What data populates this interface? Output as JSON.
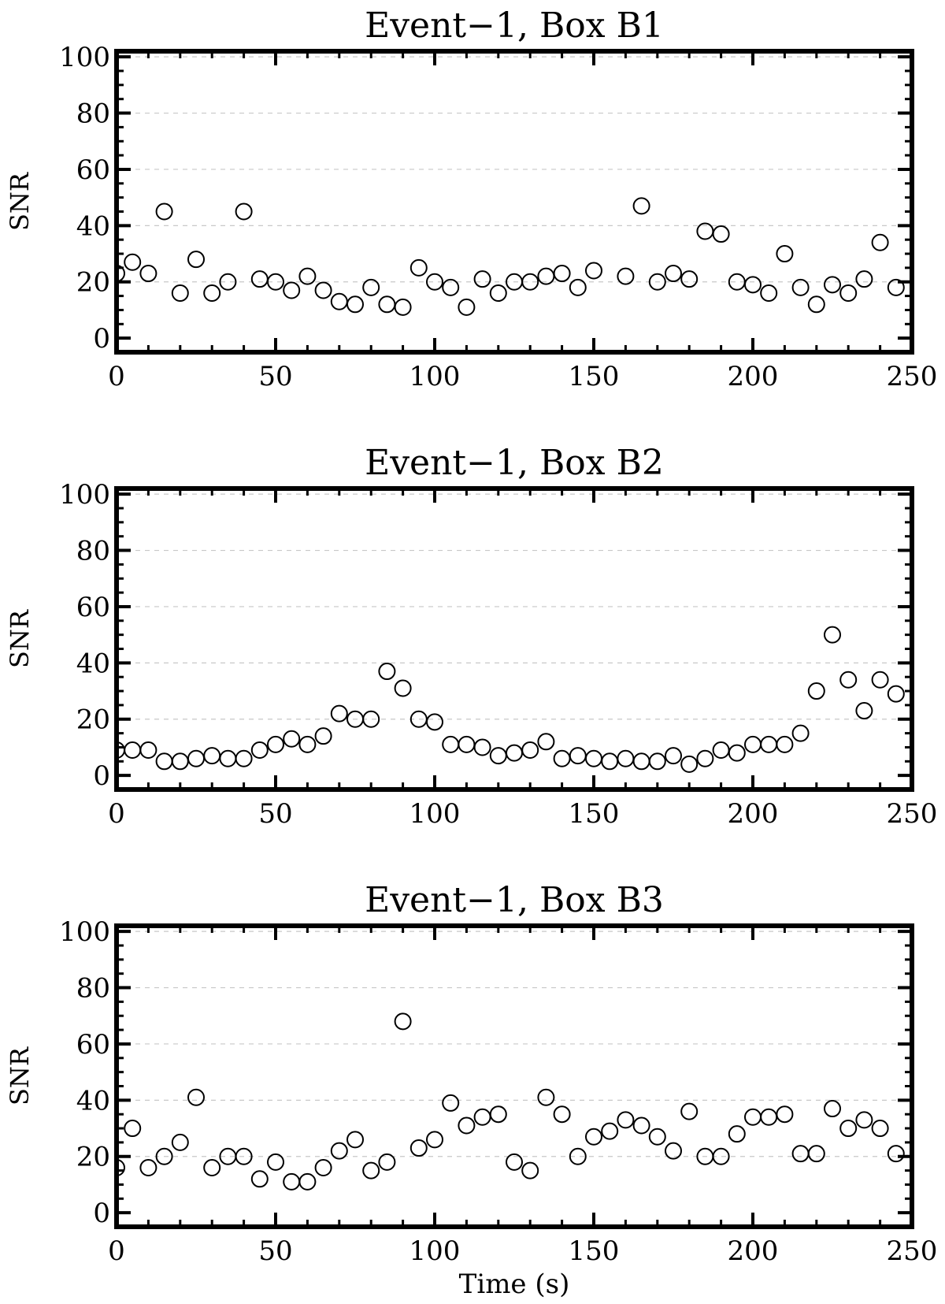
{
  "chart_data": [
    {
      "type": "scatter",
      "title": "Event−1, Box B1",
      "xlabel": "",
      "ylabel": "SNR",
      "xlim": [
        0,
        250
      ],
      "ylim": [
        -5,
        102
      ],
      "xticks": [
        0,
        50,
        100,
        150,
        200,
        250
      ],
      "yticks": [
        0,
        20,
        40,
        60,
        80,
        100
      ],
      "xtick_labels": [
        "0",
        "50",
        "100",
        "150",
        "200",
        "250"
      ],
      "ytick_labels": [
        "0",
        "20",
        "40",
        "60",
        "80",
        "100"
      ],
      "grid": "horizontal dashed",
      "marker": "open-circle",
      "x": [
        0,
        5,
        10,
        15,
        20,
        25,
        30,
        35,
        40,
        45,
        50,
        55,
        60,
        65,
        70,
        75,
        80,
        85,
        90,
        95,
        100,
        105,
        110,
        115,
        120,
        125,
        130,
        135,
        140,
        145,
        150,
        160,
        165,
        170,
        175,
        180,
        185,
        190,
        195,
        200,
        205,
        210,
        215,
        220,
        225,
        230,
        235,
        240,
        245
      ],
      "y": [
        23,
        27,
        23,
        45,
        16,
        28,
        16,
        20,
        45,
        21,
        20,
        17,
        22,
        17,
        13,
        12,
        18,
        12,
        11,
        25,
        20,
        18,
        11,
        21,
        16,
        20,
        20,
        22,
        23,
        18,
        24,
        22,
        47,
        20,
        23,
        21,
        38,
        37,
        20,
        19,
        16,
        30,
        18,
        12,
        19,
        16,
        21,
        34,
        18
      ]
    },
    {
      "type": "scatter",
      "title": "Event−1, Box B2",
      "xlabel": "",
      "ylabel": "SNR",
      "xlim": [
        0,
        250
      ],
      "ylim": [
        -5,
        102
      ],
      "xticks": [
        0,
        50,
        100,
        150,
        200,
        250
      ],
      "yticks": [
        0,
        20,
        40,
        60,
        80,
        100
      ],
      "xtick_labels": [
        "0",
        "50",
        "100",
        "150",
        "200",
        "250"
      ],
      "ytick_labels": [
        "0",
        "20",
        "40",
        "60",
        "80",
        "100"
      ],
      "grid": "horizontal dashed",
      "marker": "open-circle",
      "x": [
        0,
        5,
        10,
        15,
        20,
        25,
        30,
        35,
        40,
        45,
        50,
        55,
        60,
        65,
        70,
        75,
        80,
        85,
        90,
        95,
        100,
        105,
        110,
        115,
        120,
        125,
        130,
        135,
        140,
        145,
        150,
        155,
        160,
        165,
        170,
        175,
        180,
        185,
        190,
        195,
        200,
        205,
        210,
        215,
        220,
        225,
        230,
        235,
        240,
        245
      ],
      "y": [
        9,
        9,
        9,
        5,
        5,
        6,
        7,
        6,
        6,
        9,
        11,
        13,
        11,
        14,
        22,
        20,
        20,
        37,
        31,
        20,
        19,
        11,
        11,
        10,
        7,
        8,
        9,
        12,
        6,
        7,
        6,
        5,
        6,
        5,
        5,
        7,
        4,
        6,
        9,
        8,
        11,
        11,
        11,
        15,
        30,
        50,
        34,
        23,
        34,
        29
      ]
    },
    {
      "type": "scatter",
      "title": "Event−1, Box B3",
      "xlabel": "Time (s)",
      "ylabel": "SNR",
      "xlim": [
        0,
        250
      ],
      "ylim": [
        -5,
        102
      ],
      "xticks": [
        0,
        50,
        100,
        150,
        200,
        250
      ],
      "yticks": [
        0,
        20,
        40,
        60,
        80,
        100
      ],
      "xtick_labels": [
        "0",
        "50",
        "100",
        "150",
        "200",
        "250"
      ],
      "ytick_labels": [
        "0",
        "20",
        "40",
        "60",
        "80",
        "100"
      ],
      "grid": "horizontal dashed",
      "marker": "open-circle",
      "x": [
        0,
        5,
        10,
        15,
        20,
        25,
        30,
        35,
        40,
        45,
        50,
        55,
        60,
        65,
        70,
        75,
        80,
        85,
        90,
        95,
        100,
        105,
        110,
        115,
        120,
        125,
        130,
        135,
        140,
        145,
        150,
        155,
        160,
        165,
        170,
        175,
        180,
        185,
        190,
        195,
        200,
        205,
        210,
        215,
        220,
        225,
        230,
        235,
        240,
        245
      ],
      "y": [
        16,
        30,
        16,
        20,
        25,
        41,
        16,
        20,
        20,
        12,
        18,
        11,
        11,
        16,
        22,
        26,
        15,
        18,
        68,
        23,
        26,
        39,
        31,
        34,
        35,
        18,
        15,
        41,
        35,
        20,
        27,
        29,
        33,
        31,
        27,
        22,
        36,
        20,
        20,
        28,
        34,
        34,
        35,
        21,
        21,
        37,
        30,
        33,
        30,
        21
      ]
    }
  ]
}
